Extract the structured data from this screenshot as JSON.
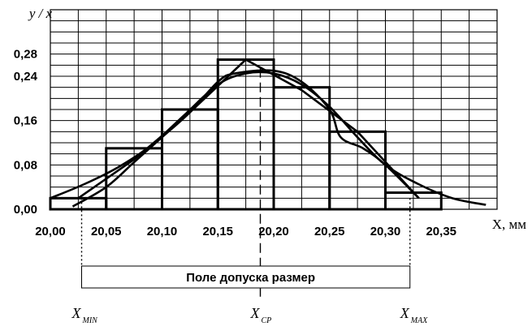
{
  "chart_data": {
    "type": "bar",
    "ylabel": "y / x",
    "xlabel": "X, мм",
    "xlim": [
      20.0,
      20.4
    ],
    "ylim": [
      0.0,
      0.36
    ],
    "y_ticks": [
      {
        "value": 0.0,
        "label": "0,00"
      },
      {
        "value": 0.08,
        "label": "0,08"
      },
      {
        "value": 0.16,
        "label": "0,16"
      },
      {
        "value": 0.24,
        "label": "0,24"
      },
      {
        "value": 0.28,
        "label": "0,28"
      }
    ],
    "x_ticks": [
      {
        "value": 20.0,
        "label": "20,00"
      },
      {
        "value": 20.05,
        "label": "20,05"
      },
      {
        "value": 20.1,
        "label": "20,10"
      },
      {
        "value": 20.15,
        "label": "20,15"
      },
      {
        "value": 20.2,
        "label": "20,20"
      },
      {
        "value": 20.25,
        "label": "20,25"
      },
      {
        "value": 20.3,
        "label": "20,30"
      },
      {
        "value": 20.35,
        "label": "20,35"
      }
    ],
    "grid": true,
    "histogram_bins": [
      {
        "x0": 20.0,
        "x1": 20.05,
        "value": 0.02
      },
      {
        "x0": 20.05,
        "x1": 20.1,
        "value": 0.11
      },
      {
        "x0": 20.1,
        "x1": 20.15,
        "value": 0.18
      },
      {
        "x0": 20.15,
        "x1": 20.2,
        "value": 0.27
      },
      {
        "x0": 20.2,
        "x1": 20.25,
        "value": 0.22
      },
      {
        "x0": 20.25,
        "x1": 20.3,
        "value": 0.14
      },
      {
        "x0": 20.3,
        "x1": 20.35,
        "value": 0.03
      }
    ],
    "polygon": [
      {
        "x": 20.0,
        "y": 0.02
      },
      {
        "x": 20.025,
        "y": 0.02
      },
      {
        "x": 20.075,
        "y": 0.09
      },
      {
        "x": 20.125,
        "y": 0.175
      },
      {
        "x": 20.175,
        "y": 0.27
      },
      {
        "x": 20.225,
        "y": 0.215
      },
      {
        "x": 20.275,
        "y": 0.14
      },
      {
        "x": 20.33,
        "y": 0.02
      }
    ],
    "empirical_curve": [
      {
        "x": 20.02,
        "y": 0.005
      },
      {
        "x": 20.05,
        "y": 0.04
      },
      {
        "x": 20.075,
        "y": 0.085
      },
      {
        "x": 20.1,
        "y": 0.13
      },
      {
        "x": 20.125,
        "y": 0.175
      },
      {
        "x": 20.15,
        "y": 0.23
      },
      {
        "x": 20.165,
        "y": 0.245
      },
      {
        "x": 20.2,
        "y": 0.25
      },
      {
        "x": 20.225,
        "y": 0.23
      },
      {
        "x": 20.25,
        "y": 0.18
      },
      {
        "x": 20.26,
        "y": 0.13
      },
      {
        "x": 20.28,
        "y": 0.11
      },
      {
        "x": 20.3,
        "y": 0.08
      },
      {
        "x": 20.33,
        "y": 0.02
      }
    ],
    "normal_curve": [
      {
        "x": 20.0,
        "y": 0.02
      },
      {
        "x": 20.03,
        "y": 0.045
      },
      {
        "x": 20.06,
        "y": 0.075
      },
      {
        "x": 20.09,
        "y": 0.115
      },
      {
        "x": 20.12,
        "y": 0.17
      },
      {
        "x": 20.15,
        "y": 0.225
      },
      {
        "x": 20.175,
        "y": 0.245
      },
      {
        "x": 20.2,
        "y": 0.245
      },
      {
        "x": 20.225,
        "y": 0.225
      },
      {
        "x": 20.25,
        "y": 0.185
      },
      {
        "x": 20.275,
        "y": 0.13
      },
      {
        "x": 20.3,
        "y": 0.08
      },
      {
        "x": 20.33,
        "y": 0.045
      },
      {
        "x": 20.36,
        "y": 0.02
      },
      {
        "x": 20.39,
        "y": 0.008
      }
    ],
    "markers": [
      {
        "id": "min",
        "x": 20.028,
        "main": "X",
        "sub": "MIN"
      },
      {
        "id": "cp",
        "x": 20.188,
        "main": "X",
        "sub": "CP"
      },
      {
        "id": "max",
        "x": 20.322,
        "main": "X",
        "sub": "MAX"
      }
    ],
    "tolerance_label": "Поле допуска размер"
  }
}
